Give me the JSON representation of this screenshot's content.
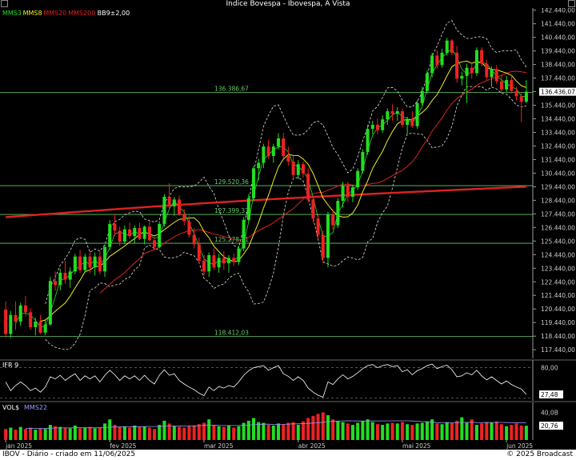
{
  "window": {
    "title": "Índice Bovespa - Ibovespa, A Vista"
  },
  "footer": {
    "left": "IBOV - Diário - criado em 11/06/2025",
    "right": "© 2025 Broadcast"
  },
  "colors": {
    "up": "#22dd22",
    "down": "#ee2222",
    "mms3": "#22dd22",
    "mms8": "#eeee22",
    "mms20": "#dd2222",
    "mms200": "#dd2222",
    "bb": "#dddddd",
    "hline": "#66cc66"
  },
  "chart_data": [
    {
      "type": "candlestick",
      "panel": "price",
      "legend": [
        {
          "label": "MMS3",
          "color": "#22dd22"
        },
        {
          "label": "MMS8",
          "color": "#eeee22"
        },
        {
          "label": "MMS20",
          "color": "#dd2222"
        },
        {
          "label": "MMS200",
          "color": "#dd2222"
        },
        {
          "label": "BB9±2,00",
          "color": "#ffffff"
        }
      ],
      "y_ticks": [
        "117.440,00",
        "118.440,00",
        "119.440,00",
        "120.440,00",
        "121.440,00",
        "122.440,00",
        "123.440,00",
        "124.440,00",
        "125.440,00",
        "126.440,00",
        "127.440,00",
        "128.440,00",
        "129.440,00",
        "130.440,00",
        "131.440,00",
        "132.440,00",
        "133.440,00",
        "134.440,00",
        "135.440,00",
        "136.440,00",
        "137.440,00",
        "138.440,00",
        "139.440,00",
        "140.440,00",
        "141.440,00",
        "142.440,00"
      ],
      "ylim": [
        116800,
        142600
      ],
      "last_price_label": "136.436,07",
      "last_price": 136436,
      "levels": [
        {
          "label": "136.386,67",
          "value": 136386.67
        },
        {
          "label": "129.520,36",
          "value": 129520.36
        },
        {
          "label": "127.399,33",
          "value": 127399.33
        },
        {
          "label": "125.278,31",
          "value": 125278.31
        },
        {
          "label": "118.412,03",
          "value": 118412.03
        }
      ],
      "x_labels": [
        {
          "label": "jan 2025",
          "index": 0
        },
        {
          "label": "fev 2025",
          "index": 21
        },
        {
          "label": "mar 2025",
          "index": 40
        },
        {
          "label": "abr 2025",
          "index": 59
        },
        {
          "label": "mai 2025",
          "index": 80
        },
        {
          "label": "jun 2025",
          "index": 101
        }
      ],
      "candles": [
        {
          "o": 120400,
          "h": 121000,
          "l": 118300,
          "c": 118600
        },
        {
          "o": 118600,
          "h": 120300,
          "l": 118300,
          "c": 120000
        },
        {
          "o": 120000,
          "h": 121000,
          "l": 118900,
          "c": 119500
        },
        {
          "o": 119500,
          "h": 120900,
          "l": 119200,
          "c": 120700
        },
        {
          "o": 120700,
          "h": 121400,
          "l": 119900,
          "c": 120200
        },
        {
          "o": 120200,
          "h": 120500,
          "l": 118900,
          "c": 119100
        },
        {
          "o": 119100,
          "h": 119800,
          "l": 118500,
          "c": 119500
        },
        {
          "o": 119500,
          "h": 120000,
          "l": 118600,
          "c": 118700
        },
        {
          "o": 118700,
          "h": 119600,
          "l": 118500,
          "c": 119300
        },
        {
          "o": 119300,
          "h": 122800,
          "l": 119200,
          "c": 122500
        },
        {
          "o": 122500,
          "h": 123200,
          "l": 121800,
          "c": 122200
        },
        {
          "o": 122200,
          "h": 123400,
          "l": 121800,
          "c": 123100
        },
        {
          "o": 123100,
          "h": 124000,
          "l": 122300,
          "c": 122600
        },
        {
          "o": 122600,
          "h": 123500,
          "l": 122000,
          "c": 123200
        },
        {
          "o": 123200,
          "h": 124500,
          "l": 123000,
          "c": 124300
        },
        {
          "o": 124300,
          "h": 124800,
          "l": 123100,
          "c": 123300
        },
        {
          "o": 123300,
          "h": 124500,
          "l": 123100,
          "c": 124300
        },
        {
          "o": 124300,
          "h": 124700,
          "l": 123100,
          "c": 123500
        },
        {
          "o": 123500,
          "h": 124600,
          "l": 122900,
          "c": 124300
        },
        {
          "o": 124300,
          "h": 124700,
          "l": 123000,
          "c": 123200
        },
        {
          "o": 123200,
          "h": 125200,
          "l": 122800,
          "c": 125000
        },
        {
          "o": 125000,
          "h": 127000,
          "l": 124800,
          "c": 126700
        },
        {
          "o": 126700,
          "h": 127400,
          "l": 125800,
          "c": 126200
        },
        {
          "o": 126200,
          "h": 126500,
          "l": 125100,
          "c": 125400
        },
        {
          "o": 125400,
          "h": 126600,
          "l": 125200,
          "c": 126300
        },
        {
          "o": 126300,
          "h": 126800,
          "l": 125600,
          "c": 125800
        },
        {
          "o": 125800,
          "h": 126600,
          "l": 125300,
          "c": 126400
        },
        {
          "o": 126400,
          "h": 126800,
          "l": 125500,
          "c": 125600
        },
        {
          "o": 125600,
          "h": 126600,
          "l": 125200,
          "c": 126500
        },
        {
          "o": 126500,
          "h": 126900,
          "l": 125400,
          "c": 125500
        },
        {
          "o": 125500,
          "h": 125700,
          "l": 124800,
          "c": 125000
        },
        {
          "o": 125000,
          "h": 126900,
          "l": 124900,
          "c": 126700
        },
        {
          "o": 126700,
          "h": 128900,
          "l": 126500,
          "c": 128700
        },
        {
          "o": 128700,
          "h": 129700,
          "l": 127800,
          "c": 128000
        },
        {
          "o": 128000,
          "h": 128700,
          "l": 127300,
          "c": 128500
        },
        {
          "o": 128500,
          "h": 128800,
          "l": 127300,
          "c": 127400
        },
        {
          "o": 127400,
          "h": 127800,
          "l": 126600,
          "c": 126900
        },
        {
          "o": 126900,
          "h": 127300,
          "l": 125700,
          "c": 125900
        },
        {
          "o": 125900,
          "h": 126400,
          "l": 124900,
          "c": 125200
        },
        {
          "o": 125200,
          "h": 125700,
          "l": 123800,
          "c": 124000
        },
        {
          "o": 124000,
          "h": 124400,
          "l": 122900,
          "c": 123200
        },
        {
          "o": 123200,
          "h": 124600,
          "l": 122800,
          "c": 124400
        },
        {
          "o": 124400,
          "h": 124900,
          "l": 123300,
          "c": 123500
        },
        {
          "o": 123500,
          "h": 124500,
          "l": 123100,
          "c": 124200
        },
        {
          "o": 124200,
          "h": 124700,
          "l": 123300,
          "c": 123800
        },
        {
          "o": 123800,
          "h": 124400,
          "l": 123100,
          "c": 124200
        },
        {
          "o": 124200,
          "h": 124500,
          "l": 123600,
          "c": 123900
        },
        {
          "o": 123900,
          "h": 125100,
          "l": 123700,
          "c": 124900
        },
        {
          "o": 124900,
          "h": 127200,
          "l": 124700,
          "c": 127000
        },
        {
          "o": 127000,
          "h": 128900,
          "l": 126800,
          "c": 128600
        },
        {
          "o": 128600,
          "h": 131000,
          "l": 128400,
          "c": 130800
        },
        {
          "o": 130800,
          "h": 131500,
          "l": 129900,
          "c": 131200
        },
        {
          "o": 131200,
          "h": 132600,
          "l": 130800,
          "c": 132400
        },
        {
          "o": 132400,
          "h": 132900,
          "l": 131500,
          "c": 131700
        },
        {
          "o": 131700,
          "h": 132600,
          "l": 131200,
          "c": 132400
        },
        {
          "o": 132400,
          "h": 133400,
          "l": 132200,
          "c": 133000
        },
        {
          "o": 133000,
          "h": 133400,
          "l": 131500,
          "c": 131700
        },
        {
          "o": 131700,
          "h": 132400,
          "l": 131000,
          "c": 131300
        },
        {
          "o": 131300,
          "h": 131700,
          "l": 130000,
          "c": 130300
        },
        {
          "o": 130300,
          "h": 131400,
          "l": 130000,
          "c": 131100
        },
        {
          "o": 131100,
          "h": 131300,
          "l": 130100,
          "c": 130400
        },
        {
          "o": 130400,
          "h": 130800,
          "l": 128300,
          "c": 128500
        },
        {
          "o": 128500,
          "h": 128800,
          "l": 126800,
          "c": 127100
        },
        {
          "o": 127100,
          "h": 127400,
          "l": 125600,
          "c": 125900
        },
        {
          "o": 125900,
          "h": 126200,
          "l": 123800,
          "c": 124200
        },
        {
          "o": 124200,
          "h": 127600,
          "l": 123500,
          "c": 127400
        },
        {
          "o": 127400,
          "h": 127800,
          "l": 126300,
          "c": 126600
        },
        {
          "o": 126600,
          "h": 128600,
          "l": 126400,
          "c": 128400
        },
        {
          "o": 128400,
          "h": 129800,
          "l": 127900,
          "c": 129500
        },
        {
          "o": 129500,
          "h": 129800,
          "l": 128300,
          "c": 128700
        },
        {
          "o": 128700,
          "h": 129600,
          "l": 128300,
          "c": 129400
        },
        {
          "o": 129400,
          "h": 130800,
          "l": 129200,
          "c": 130600
        },
        {
          "o": 130600,
          "h": 132200,
          "l": 130400,
          "c": 132000
        },
        {
          "o": 132000,
          "h": 134000,
          "l": 131800,
          "c": 133700
        },
        {
          "o": 133700,
          "h": 134300,
          "l": 133300,
          "c": 134000
        },
        {
          "o": 134000,
          "h": 134500,
          "l": 133300,
          "c": 133600
        },
        {
          "o": 133600,
          "h": 134700,
          "l": 133400,
          "c": 134400
        },
        {
          "o": 134400,
          "h": 135200,
          "l": 134000,
          "c": 135000
        },
        {
          "o": 135000,
          "h": 135500,
          "l": 134300,
          "c": 134800
        },
        {
          "o": 134800,
          "h": 135300,
          "l": 134300,
          "c": 135000
        },
        {
          "o": 135000,
          "h": 135200,
          "l": 133800,
          "c": 134000
        },
        {
          "o": 134000,
          "h": 134600,
          "l": 133300,
          "c": 134400
        },
        {
          "o": 134400,
          "h": 135000,
          "l": 133800,
          "c": 133900
        },
        {
          "o": 133900,
          "h": 135800,
          "l": 133700,
          "c": 135600
        },
        {
          "o": 135600,
          "h": 136800,
          "l": 135400,
          "c": 136500
        },
        {
          "o": 136500,
          "h": 138000,
          "l": 136300,
          "c": 137800
        },
        {
          "o": 137800,
          "h": 139300,
          "l": 137500,
          "c": 139100
        },
        {
          "o": 139100,
          "h": 139500,
          "l": 138100,
          "c": 138400
        },
        {
          "o": 138400,
          "h": 139600,
          "l": 138200,
          "c": 139300
        },
        {
          "o": 139300,
          "h": 140400,
          "l": 139100,
          "c": 140200
        },
        {
          "o": 140200,
          "h": 140300,
          "l": 139100,
          "c": 139300
        },
        {
          "o": 139300,
          "h": 139800,
          "l": 137100,
          "c": 137400
        },
        {
          "o": 137400,
          "h": 137900,
          "l": 136900,
          "c": 137600
        },
        {
          "o": 137600,
          "h": 138500,
          "l": 135600,
          "c": 138200
        },
        {
          "o": 138200,
          "h": 138600,
          "l": 137400,
          "c": 137800
        },
        {
          "o": 137800,
          "h": 139700,
          "l": 137600,
          "c": 139500
        },
        {
          "o": 139500,
          "h": 139700,
          "l": 138300,
          "c": 138500
        },
        {
          "o": 138500,
          "h": 138800,
          "l": 137300,
          "c": 137500
        },
        {
          "o": 137500,
          "h": 138300,
          "l": 136800,
          "c": 138100
        },
        {
          "o": 138100,
          "h": 138400,
          "l": 137000,
          "c": 137200
        },
        {
          "o": 137200,
          "h": 137700,
          "l": 136300,
          "c": 136600
        },
        {
          "o": 136600,
          "h": 137600,
          "l": 136400,
          "c": 137300
        },
        {
          "o": 137300,
          "h": 137700,
          "l": 136300,
          "c": 136500
        },
        {
          "o": 136500,
          "h": 136800,
          "l": 135800,
          "c": 136100
        },
        {
          "o": 136100,
          "h": 136400,
          "l": 134200,
          "c": 135700
        },
        {
          "o": 135700,
          "h": 137300,
          "l": 135600,
          "c": 136436
        }
      ]
    },
    {
      "type": "line",
      "panel": "indicator",
      "legend": [
        {
          "label": "IFR 9",
          "color": "#ffffff"
        }
      ],
      "y_ticks": [
        "80,00"
      ],
      "ylim": [
        15,
        95
      ],
      "last_value_label": "27,48",
      "values": [
        52,
        35,
        45,
        52,
        45,
        35,
        40,
        32,
        42,
        62,
        58,
        65,
        55,
        62,
        68,
        55,
        64,
        58,
        64,
        52,
        65,
        75,
        66,
        55,
        64,
        58,
        64,
        55,
        65,
        55,
        48,
        65,
        76,
        65,
        68,
        55,
        48,
        42,
        37,
        30,
        25,
        42,
        35,
        43,
        40,
        45,
        42,
        52,
        65,
        74,
        80,
        82,
        84,
        75,
        80,
        84,
        68,
        63,
        55,
        62,
        55,
        40,
        32,
        26,
        22,
        52,
        47,
        58,
        66,
        58,
        63,
        70,
        78,
        84,
        86,
        80,
        84,
        86,
        82,
        84,
        72,
        76,
        66,
        74,
        78,
        84,
        87,
        78,
        82,
        85,
        76,
        62,
        64,
        70,
        66,
        75,
        64,
        56,
        62,
        55,
        48,
        54,
        47,
        42,
        38,
        27.48
      ]
    },
    {
      "type": "bar",
      "panel": "volume",
      "legend": [
        {
          "label": "VOL$",
          "color": "#ffffff"
        },
        {
          "label": "MMS22",
          "color": "#9999ff"
        }
      ],
      "y_ticks": [
        "40,0B"
      ],
      "ylim": [
        0,
        50
      ],
      "last_value_label": "20,76",
      "values": [
        16,
        18,
        15,
        19,
        16,
        18,
        15,
        17,
        16,
        22,
        20,
        19,
        18,
        17,
        21,
        17,
        18,
        19,
        17,
        18,
        24,
        30,
        22,
        19,
        20,
        18,
        21,
        19,
        20,
        18,
        16,
        22,
        28,
        24,
        20,
        19,
        18,
        20,
        21,
        23,
        25,
        30,
        22,
        20,
        19,
        21,
        18,
        20,
        25,
        28,
        32,
        26,
        25,
        22,
        21,
        24,
        23,
        25,
        26,
        22,
        27,
        32,
        35,
        38,
        40,
        36,
        30,
        28,
        26,
        24,
        22,
        25,
        28,
        30,
        26,
        23,
        22,
        24,
        25,
        24,
        26,
        23,
        22,
        24,
        25,
        27,
        30,
        24,
        23,
        26,
        25,
        28,
        33,
        25,
        30,
        22,
        24,
        26,
        25,
        27,
        23,
        20,
        22,
        24,
        21,
        20.76
      ]
    }
  ]
}
